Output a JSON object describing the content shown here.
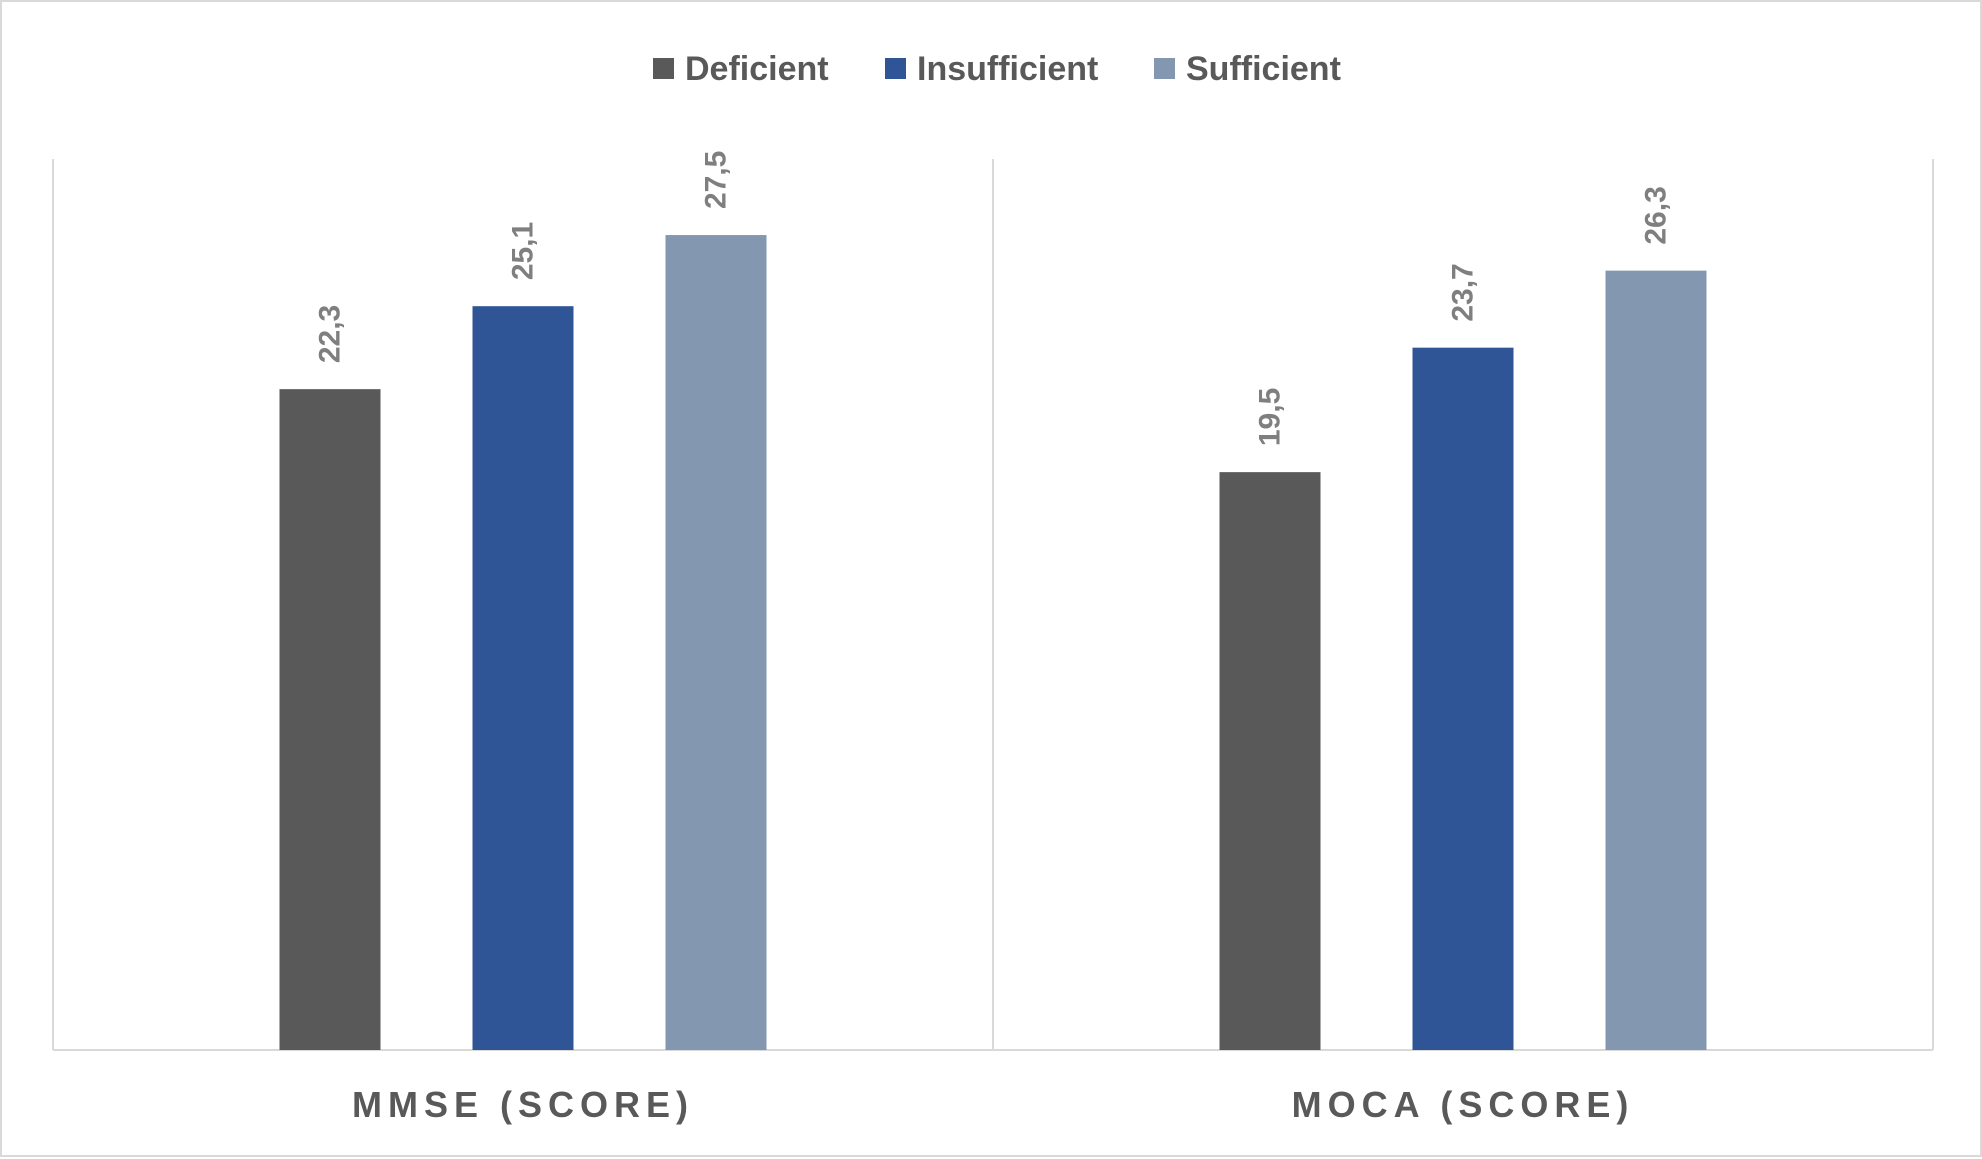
{
  "chart_data": {
    "type": "bar",
    "title": "",
    "xlabel": "",
    "ylabel": "",
    "categories": [
      "MMSE (SCORE)",
      "MOCA (SCORE)"
    ],
    "series": [
      {
        "name": "Deficient",
        "values": [
          22.3,
          19.5
        ],
        "labels": [
          "22,3",
          "19,5"
        ],
        "color": "#595959"
      },
      {
        "name": "Insufficient",
        "values": [
          25.1,
          23.7
        ],
        "labels": [
          "25,1",
          "23,7"
        ],
        "color": "#2f5597"
      },
      {
        "name": "Sufficient",
        "values": [
          27.5,
          26.3
        ],
        "labels": [
          "27,5",
          "26,3"
        ],
        "color": "#8497b0"
      }
    ],
    "ylim": [
      0,
      30
    ],
    "grid": false,
    "legend_position": "top-center",
    "axis_line_color": "#d9d9d9"
  }
}
